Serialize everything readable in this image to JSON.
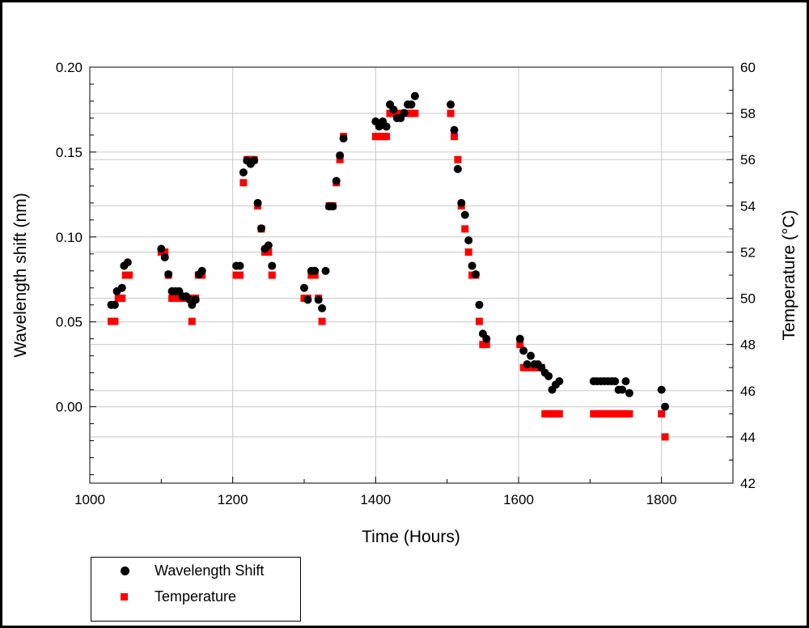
{
  "chart_data": {
    "type": "scatter",
    "xlabel": "Time (Hours)",
    "ylabel": "Wavelength shift (nm)",
    "y2label": "Temperature (°C)",
    "xlim": [
      1000,
      1900
    ],
    "ylim": [
      -0.045,
      0.2
    ],
    "y2lim": [
      42,
      60
    ],
    "x_ticks": [
      1000,
      1200,
      1400,
      1600,
      1800
    ],
    "y_ticks": [
      0.0,
      0.05,
      0.1,
      0.15,
      0.2
    ],
    "y_tick_labels": [
      "0.00",
      "0.05",
      "0.10",
      "0.15",
      "0.20"
    ],
    "y2_ticks": [
      42,
      44,
      46,
      48,
      50,
      52,
      54,
      56,
      58,
      60
    ],
    "grid": true,
    "legend_position": "bottom-left-outside",
    "series": [
      {
        "name": "Wavelength Shift",
        "axis": "left",
        "marker": "circle",
        "color": "#000000",
        "points": [
          [
            1030,
            0.06
          ],
          [
            1035,
            0.06
          ],
          [
            1038,
            0.068
          ],
          [
            1045,
            0.07
          ],
          [
            1048,
            0.083
          ],
          [
            1053,
            0.085
          ],
          [
            1100,
            0.093
          ],
          [
            1105,
            0.088
          ],
          [
            1110,
            0.078
          ],
          [
            1115,
            0.068
          ],
          [
            1120,
            0.068
          ],
          [
            1125,
            0.068
          ],
          [
            1130,
            0.065
          ],
          [
            1135,
            0.065
          ],
          [
            1140,
            0.063
          ],
          [
            1143,
            0.06
          ],
          [
            1148,
            0.063
          ],
          [
            1153,
            0.078
          ],
          [
            1157,
            0.08
          ],
          [
            1205,
            0.083
          ],
          [
            1210,
            0.083
          ],
          [
            1215,
            0.138
          ],
          [
            1220,
            0.145
          ],
          [
            1225,
            0.143
          ],
          [
            1230,
            0.145
          ],
          [
            1235,
            0.12
          ],
          [
            1240,
            0.105
          ],
          [
            1245,
            0.093
          ],
          [
            1250,
            0.095
          ],
          [
            1255,
            0.083
          ],
          [
            1300,
            0.07
          ],
          [
            1305,
            0.063
          ],
          [
            1310,
            0.08
          ],
          [
            1315,
            0.08
          ],
          [
            1320,
            0.063
          ],
          [
            1325,
            0.058
          ],
          [
            1330,
            0.08
          ],
          [
            1335,
            0.118
          ],
          [
            1340,
            0.118
          ],
          [
            1345,
            0.133
          ],
          [
            1350,
            0.148
          ],
          [
            1355,
            0.158
          ],
          [
            1400,
            0.168
          ],
          [
            1405,
            0.165
          ],
          [
            1410,
            0.168
          ],
          [
            1415,
            0.165
          ],
          [
            1420,
            0.178
          ],
          [
            1425,
            0.175
          ],
          [
            1430,
            0.17
          ],
          [
            1435,
            0.17
          ],
          [
            1440,
            0.173
          ],
          [
            1445,
            0.178
          ],
          [
            1450,
            0.178
          ],
          [
            1455,
            0.183
          ],
          [
            1505,
            0.178
          ],
          [
            1510,
            0.163
          ],
          [
            1515,
            0.14
          ],
          [
            1520,
            0.12
          ],
          [
            1525,
            0.113
          ],
          [
            1530,
            0.098
          ],
          [
            1535,
            0.083
          ],
          [
            1540,
            0.078
          ],
          [
            1545,
            0.06
          ],
          [
            1550,
            0.043
          ],
          [
            1555,
            0.04
          ],
          [
            1602,
            0.04
          ],
          [
            1607,
            0.033
          ],
          [
            1612,
            0.025
          ],
          [
            1617,
            0.03
          ],
          [
            1622,
            0.025
          ],
          [
            1627,
            0.025
          ],
          [
            1632,
            0.023
          ],
          [
            1637,
            0.02
          ],
          [
            1642,
            0.018
          ],
          [
            1647,
            0.01
          ],
          [
            1652,
            0.013
          ],
          [
            1657,
            0.015
          ],
          [
            1705,
            0.015
          ],
          [
            1710,
            0.015
          ],
          [
            1715,
            0.015
          ],
          [
            1720,
            0.015
          ],
          [
            1725,
            0.015
          ],
          [
            1730,
            0.015
          ],
          [
            1735,
            0.015
          ],
          [
            1740,
            0.01
          ],
          [
            1745,
            0.01
          ],
          [
            1750,
            0.015
          ],
          [
            1755,
            0.008
          ],
          [
            1800,
            0.01
          ],
          [
            1805,
            0.0
          ]
        ]
      },
      {
        "name": "Temperature",
        "axis": "right",
        "marker": "square",
        "color": "#ff0000",
        "points": [
          [
            1030,
            49
          ],
          [
            1035,
            49
          ],
          [
            1040,
            50
          ],
          [
            1045,
            50
          ],
          [
            1050,
            51
          ],
          [
            1055,
            51
          ],
          [
            1100,
            52
          ],
          [
            1105,
            52
          ],
          [
            1110,
            51
          ],
          [
            1115,
            50
          ],
          [
            1120,
            50
          ],
          [
            1125,
            50
          ],
          [
            1130,
            50
          ],
          [
            1135,
            50
          ],
          [
            1140,
            50
          ],
          [
            1143,
            49
          ],
          [
            1148,
            50
          ],
          [
            1152,
            51
          ],
          [
            1157,
            51
          ],
          [
            1205,
            51
          ],
          [
            1210,
            51
          ],
          [
            1215,
            55
          ],
          [
            1220,
            56
          ],
          [
            1225,
            56
          ],
          [
            1230,
            56
          ],
          [
            1235,
            54
          ],
          [
            1240,
            53
          ],
          [
            1245,
            52
          ],
          [
            1250,
            52
          ],
          [
            1255,
            51
          ],
          [
            1300,
            50
          ],
          [
            1305,
            50
          ],
          [
            1310,
            51
          ],
          [
            1315,
            51
          ],
          [
            1320,
            50
          ],
          [
            1325,
            49
          ],
          [
            1335,
            54
          ],
          [
            1340,
            54
          ],
          [
            1345,
            55
          ],
          [
            1350,
            56
          ],
          [
            1355,
            57
          ],
          [
            1400,
            57
          ],
          [
            1405,
            57
          ],
          [
            1410,
            57
          ],
          [
            1415,
            57
          ],
          [
            1420,
            58
          ],
          [
            1425,
            58
          ],
          [
            1430,
            58
          ],
          [
            1435,
            58
          ],
          [
            1440,
            58
          ],
          [
            1445,
            58
          ],
          [
            1450,
            58
          ],
          [
            1455,
            58
          ],
          [
            1505,
            58
          ],
          [
            1510,
            57
          ],
          [
            1515,
            56
          ],
          [
            1520,
            54
          ],
          [
            1525,
            53
          ],
          [
            1530,
            52
          ],
          [
            1535,
            51
          ],
          [
            1540,
            51
          ],
          [
            1545,
            49
          ],
          [
            1550,
            48
          ],
          [
            1555,
            48
          ],
          [
            1602,
            48
          ],
          [
            1607,
            47
          ],
          [
            1612,
            47
          ],
          [
            1617,
            47
          ],
          [
            1622,
            47
          ],
          [
            1627,
            47
          ],
          [
            1632,
            47
          ],
          [
            1637,
            45
          ],
          [
            1642,
            45
          ],
          [
            1647,
            45
          ],
          [
            1652,
            45
          ],
          [
            1657,
            45
          ],
          [
            1705,
            45
          ],
          [
            1710,
            45
          ],
          [
            1715,
            45
          ],
          [
            1720,
            45
          ],
          [
            1725,
            45
          ],
          [
            1730,
            45
          ],
          [
            1735,
            45
          ],
          [
            1740,
            45
          ],
          [
            1745,
            45
          ],
          [
            1750,
            45
          ],
          [
            1755,
            45
          ],
          [
            1800,
            45
          ],
          [
            1805,
            44
          ]
        ]
      }
    ]
  }
}
